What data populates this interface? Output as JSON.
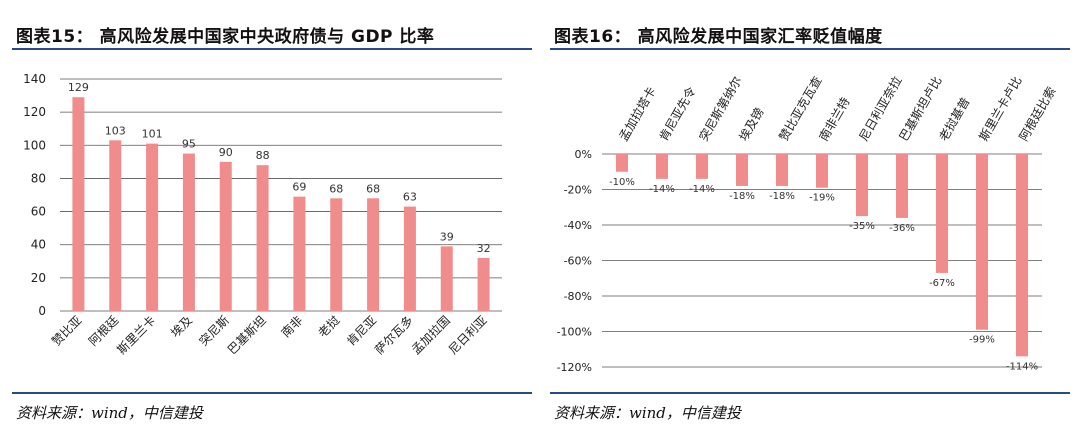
{
  "left": {
    "title": "图表15： 高风险发展中国家中央政府债与 GDP 比率",
    "source": "资料来源：wind，中信建投"
  },
  "right": {
    "title": "图表16： 高风险发展中国家汇率贬值幅度",
    "source": "资料来源：wind，中信建投"
  },
  "colors": {
    "bar": "#f08c8c",
    "grid": "#555555",
    "rule": "#2a4a8a"
  },
  "chart_data": [
    {
      "type": "bar",
      "title": "",
      "xlabel": "",
      "ylabel": "",
      "ylim": [
        0,
        140
      ],
      "yticks": [
        "0",
        "20",
        "40",
        "60",
        "80",
        "100",
        "120",
        "140"
      ],
      "categories": [
        "赞比亚",
        "阿根廷",
        "斯里兰卡",
        "埃及",
        "突尼斯",
        "巴基斯坦",
        "南非",
        "老挝",
        "肯尼亚",
        "萨尔瓦多",
        "孟加拉国",
        "尼日利亚"
      ],
      "values": [
        129,
        103,
        101,
        95,
        90,
        88,
        69,
        68,
        68,
        63,
        39,
        32
      ],
      "data_labels": [
        "129",
        "103",
        "101",
        "95",
        "90",
        "88",
        "69",
        "68",
        "68",
        "63",
        "39",
        "32"
      ],
      "grid": true
    },
    {
      "type": "bar",
      "title": "",
      "xlabel": "",
      "ylabel": "",
      "ylim": [
        -120,
        0
      ],
      "yticks": [
        "0%",
        "-20%",
        "-40%",
        "-60%",
        "-80%",
        "-100%",
        "-120%"
      ],
      "categories": [
        "孟加拉塔卡",
        "肯尼亚先令",
        "突尼斯第纳尔",
        "埃及镑",
        "赞比亚克瓦查",
        "南非兰特",
        "尼日利亚奈拉",
        "巴基斯坦卢比",
        "老挝基普",
        "斯里兰卡卢比",
        "阿根廷比索"
      ],
      "values": [
        -10,
        -14,
        -14,
        -18,
        -18,
        -19,
        -35,
        -36,
        -67,
        -99,
        -114
      ],
      "data_labels": [
        "-10%",
        "-14%",
        "-14%",
        "-18%",
        "-18%",
        "-19%",
        "-35%",
        "-36%",
        "-67%",
        "-99%",
        "-114%"
      ],
      "grid": true
    }
  ]
}
